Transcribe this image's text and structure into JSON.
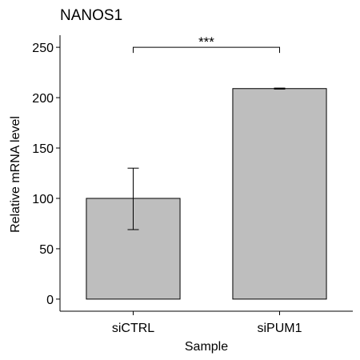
{
  "chart_data": {
    "type": "bar",
    "title": "NANOS1",
    "xlabel": "Sample",
    "ylabel": "Relative mRNA level",
    "categories": [
      "siCTRL",
      "siPUM1"
    ],
    "values": [
      100,
      209
    ],
    "error_low": [
      69,
      208.5
    ],
    "error_high": [
      130,
      209.5
    ],
    "ylim": [
      -12,
      262
    ],
    "yticks": [
      0,
      50,
      100,
      150,
      200,
      250
    ],
    "grid": false,
    "legend": "none",
    "significance": {
      "from": 0,
      "to": 1,
      "y": 250,
      "label": "***"
    },
    "colors": {
      "bar_fill": "#bebebe",
      "bar_stroke": "#000000",
      "axis": "#000000"
    }
  }
}
